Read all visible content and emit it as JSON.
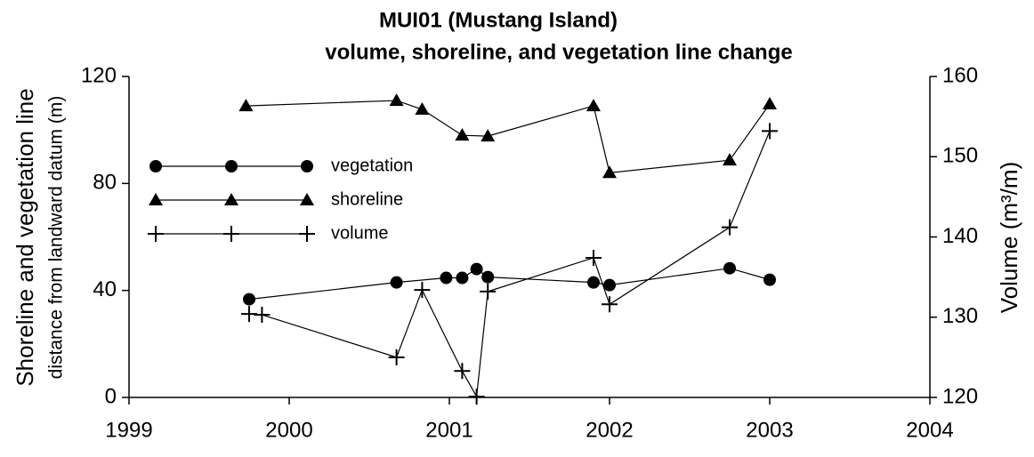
{
  "chart_data": {
    "type": "line",
    "title": "MUI01 (Mustang Island)",
    "subtitle": "volume, shoreline, and vegetation line change",
    "y_label": "Shoreline and vegetation line",
    "y_label_sub": "distance from landward datum (m)",
    "y2_label": "Volume (m³/m)",
    "xlim": [
      1999,
      2004
    ],
    "xticks": [
      1999,
      2000,
      2001,
      2002,
      2003,
      2004
    ],
    "ylim": [
      0,
      120
    ],
    "yticks": [
      0,
      40,
      80,
      120
    ],
    "y2lim": [
      120,
      160
    ],
    "y2ticks": [
      120,
      130,
      140,
      150,
      160
    ],
    "series": [
      {
        "name": "vegetation",
        "color": "#000000",
        "marker": "circle",
        "x": [
          1999.75,
          2000.67,
          2000.98,
          2001.08,
          2001.17,
          2001.24,
          2001.9,
          2002,
          2002.75,
          2003
        ],
        "values": [
          36.7,
          43,
          44.7,
          44.7,
          48,
          45,
          43,
          42,
          48.3,
          44
        ]
      },
      {
        "name": "shoreline",
        "color": "#000000",
        "marker": "triangle",
        "x": [
          1999.73,
          2000.67,
          2000.83,
          2001.08,
          2001.24,
          2001.9,
          2002,
          2002.75,
          2003
        ],
        "values": [
          109,
          111,
          107.7,
          98,
          97.7,
          109,
          84,
          88.7,
          109.7
        ]
      },
      {
        "name": "volume",
        "color": "#000000",
        "marker": "plus",
        "axis": "y2",
        "x": [
          1999.75,
          1999.83,
          2000.67,
          2000.83,
          2001.08,
          2001.17,
          2001.24,
          2001.9,
          2002,
          2002.75,
          2003
        ],
        "values": [
          130.4,
          130.3,
          125,
          133.4,
          123.3,
          120.1,
          133.2,
          137.4,
          131.6,
          141.2,
          153.2
        ]
      }
    ]
  }
}
